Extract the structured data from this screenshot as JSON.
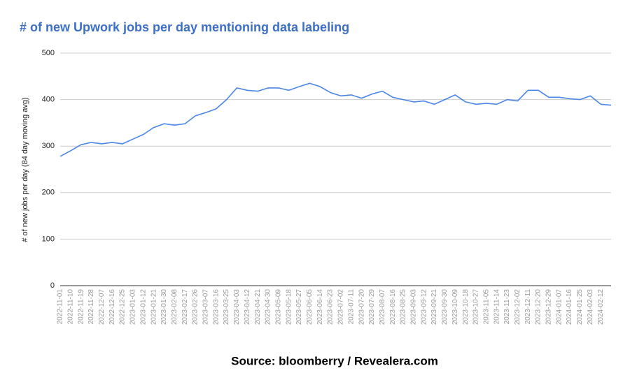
{
  "chart_data": {
    "type": "line",
    "title": "# of new Upwork jobs per day mentioning data labeling",
    "y_label": "# of new jobs per day (84 day moving avg)",
    "source": "Source: bloomberry / Revealera.com",
    "categories": [
      "2022-11-01",
      "2022-11-10",
      "2022-11-19",
      "2022-11-28",
      "2022-12-07",
      "2022-12-16",
      "2022-12-25",
      "2023-01-03",
      "2023-01-12",
      "2023-01-21",
      "2023-01-30",
      "2023-02-08",
      "2023-02-17",
      "2023-02-26",
      "2023-03-07",
      "2023-03-16",
      "2023-03-25",
      "2023-04-03",
      "2023-04-12",
      "2023-04-21",
      "2023-04-30",
      "2023-05-09",
      "2023-05-18",
      "2023-05-27",
      "2023-06-05",
      "2023-06-14",
      "2023-06-23",
      "2023-07-02",
      "2023-07-11",
      "2023-07-20",
      "2023-07-29",
      "2023-08-07",
      "2023-08-16",
      "2023-08-25",
      "2023-09-03",
      "2023-09-12",
      "2023-09-21",
      "2023-09-30",
      "2023-10-09",
      "2023-10-18",
      "2023-10-27",
      "2023-11-05",
      "2023-11-14",
      "2023-11-23",
      "2023-12-02",
      "2023-12-11",
      "2023-12-20",
      "2023-12-29",
      "2024-01-07",
      "2024-01-16",
      "2024-01-25",
      "2024-02-03",
      "2024-02-12",
      null
    ],
    "series": [
      {
        "color": "#4a86e8",
        "values": [
          278,
          290,
          303,
          308,
          305,
          308,
          305,
          315,
          325,
          340,
          348,
          345,
          348,
          365,
          372,
          380,
          400,
          425,
          420,
          418,
          425,
          425,
          420,
          428,
          435,
          428,
          415,
          408,
          410,
          403,
          412,
          418,
          405,
          400,
          395,
          397,
          390,
          400,
          410,
          395,
          390,
          392,
          390,
          400,
          397,
          420,
          420,
          405,
          405,
          402,
          400,
          408,
          390,
          388
        ]
      }
    ],
    "ylim": [
      0,
      500
    ],
    "yticks": [
      0,
      100,
      200,
      300,
      400,
      500
    ],
    "grid": true
  }
}
